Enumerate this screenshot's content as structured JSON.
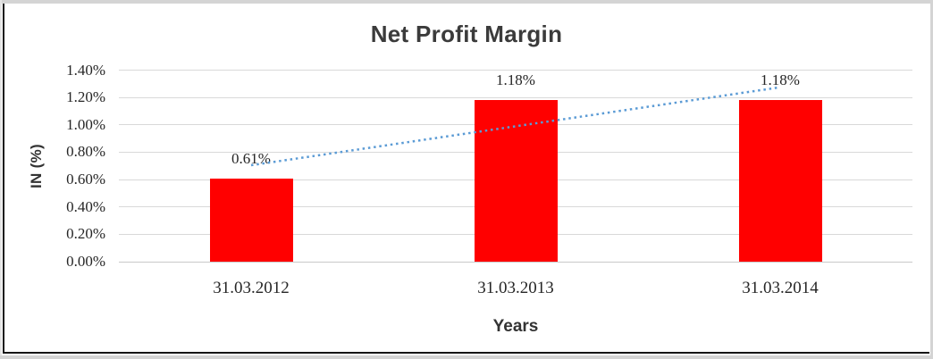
{
  "chart_data": {
    "type": "bar",
    "title": "Net Profit Margin",
    "categories": [
      "31.03.2012",
      "31.03.2013",
      "31.03.2014"
    ],
    "values": [
      0.61,
      1.18,
      1.18
    ],
    "data_labels": [
      "0.61%",
      "1.18%",
      "1.18%"
    ],
    "xlabel": "Years",
    "ylabel": "IN (%)",
    "ylim": [
      0,
      1.4
    ],
    "ytick_step": 0.2,
    "yticks": [
      "0.00%",
      "0.20%",
      "0.40%",
      "0.60%",
      "0.80%",
      "1.00%",
      "1.20%",
      "1.40%"
    ],
    "grid": true,
    "legend": "none",
    "bar_color": "#FF0000",
    "colors": {
      "title_text": "#3B3B3B",
      "tick_text": "#262626",
      "gridline": "#D9D9D9",
      "trendline": "#5B9BD5"
    },
    "trendline": {
      "type": "linear",
      "style": "dotted",
      "color": "#5B9BD5",
      "start_value": 0.705,
      "end_value": 1.275
    }
  }
}
